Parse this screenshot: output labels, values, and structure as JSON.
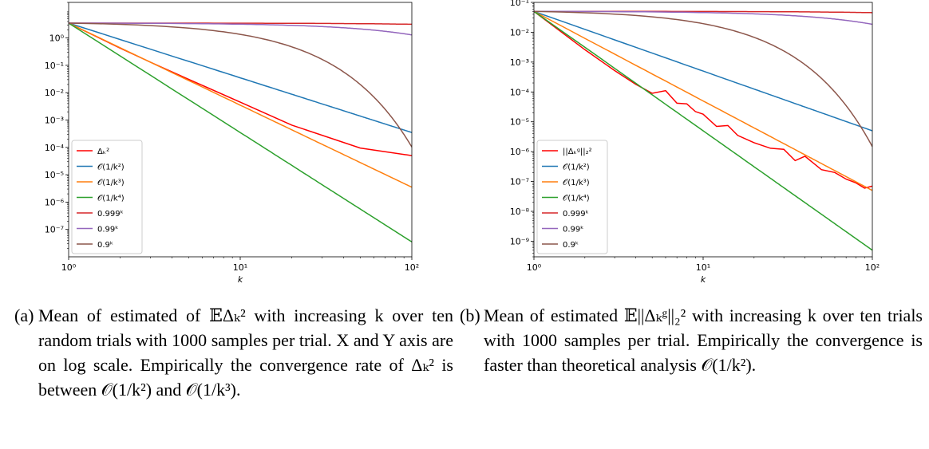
{
  "chart_data": [
    {
      "type": "line",
      "xscale": "log",
      "yscale": "log",
      "xlabel": "k",
      "ylabel": "",
      "xlim": [
        1,
        100
      ],
      "ylim": [
        1e-08,
        20
      ],
      "xticks": [
        1,
        10,
        100
      ],
      "xticklabels": [
        "10⁰",
        "10¹",
        "10²"
      ],
      "yticks": [
        1e-07,
        1e-06,
        1e-05,
        0.0001,
        0.001,
        0.01,
        0.1,
        1
      ],
      "yticklabels": [
        "10⁻⁷",
        "10⁻⁶",
        "10⁻⁵",
        "10⁻⁴",
        "10⁻³",
        "10⁻²",
        "10⁻¹",
        "10⁰"
      ],
      "legend_position": "lower-left",
      "series": [
        {
          "name": "Δₖ²",
          "color": "#ff0000",
          "x": [
            1,
            2,
            3,
            5,
            10,
            20,
            50,
            100
          ],
          "y": [
            3.5,
            0.42,
            0.13,
            0.031,
            0.0045,
            0.00065,
            9.5e-05,
            5e-05
          ]
        },
        {
          "name": "𝒪(1/k²)",
          "color": "#1f77b4",
          "formula": "3.5/k^2"
        },
        {
          "name": "𝒪(1/k³)",
          "color": "#ff7f0e",
          "formula": "3.5/k^3"
        },
        {
          "name": "𝒪(1/k⁴)",
          "color": "#2ca02c",
          "formula": "3.5/k^4"
        },
        {
          "name": "0.999ᵏ",
          "color": "#d62728",
          "formula": "3.5*0.999^(k-1)"
        },
        {
          "name": "0.99ᵏ",
          "color": "#9467bd",
          "formula": "3.5*0.99^(k-1)"
        },
        {
          "name": "0.9ᵏ",
          "color": "#8c564b",
          "formula": "3.5*0.9^(k-1)"
        }
      ]
    },
    {
      "type": "line",
      "xscale": "log",
      "yscale": "log",
      "xlabel": "k",
      "ylabel": "",
      "xlim": [
        1,
        100
      ],
      "ylim": [
        3e-10,
        0.1
      ],
      "xticks": [
        1,
        10,
        100
      ],
      "xticklabels": [
        "10⁰",
        "10¹",
        "10²"
      ],
      "yticks": [
        1e-09,
        1e-08,
        1e-07,
        1e-06,
        1e-05,
        0.0001,
        0.001,
        0.01,
        0.1
      ],
      "yticklabels": [
        "10⁻⁹",
        "10⁻⁸",
        "10⁻⁷",
        "10⁻⁶",
        "10⁻⁵",
        "10⁻⁴",
        "10⁻³",
        "10⁻²",
        "10⁻¹"
      ],
      "legend_position": "lower-left",
      "series": [
        {
          "name": "||Δₖᵍ||₂²",
          "color": "#ff0000",
          "x": [
            1,
            2,
            3,
            4,
            5,
            6,
            7,
            8,
            9,
            10,
            12,
            14,
            16,
            20,
            25,
            30,
            35,
            40,
            50,
            60,
            70,
            80,
            90,
            100
          ],
          "y": [
            0.05,
            0.0026,
            0.00052,
            0.00018,
            9e-05,
            0.00011,
            4.2e-05,
            4e-05,
            2.2e-05,
            1.8e-05,
            7e-06,
            7.5e-06,
            3.5e-06,
            2e-06,
            1.3e-06,
            1.2e-06,
            5e-07,
            7e-07,
            2.5e-07,
            2e-07,
            1.2e-07,
            9e-08,
            6e-08,
            7e-08
          ]
        },
        {
          "name": "𝒪(1/k²)",
          "color": "#1f77b4",
          "formula": "0.05/k^2"
        },
        {
          "name": "𝒪(1/k³)",
          "color": "#ff7f0e",
          "formula": "0.05/k^3"
        },
        {
          "name": "𝒪(1/k⁴)",
          "color": "#2ca02c",
          "formula": "0.05/k^4"
        },
        {
          "name": "0.999ᵏ",
          "color": "#d62728",
          "formula": "0.05*0.999^(k-1)"
        },
        {
          "name": "0.99ᵏ",
          "color": "#9467bd",
          "formula": "0.05*0.99^(k-1)"
        },
        {
          "name": "0.9ᵏ",
          "color": "#8c564b",
          "formula": "0.05*0.9^(k-1)"
        }
      ]
    }
  ],
  "captions": [
    {
      "label": "(a)",
      "text": "Mean of estimated of 𝔼Δₖ² with increasing k over ten random trials with 1000 samples per trial. X and Y axis are on log scale. Empirically the convergence rate of Δₖ² is between 𝒪(1/k²) and 𝒪(1/k³)."
    },
    {
      "label": "(b)",
      "text": "Mean of estimated 𝔼||Δₖᵍ||₂² with increasing k over ten trials with 1000 samples per trial. Empirically the convergence is faster than theoretical analysis 𝒪(1/k²)."
    }
  ]
}
